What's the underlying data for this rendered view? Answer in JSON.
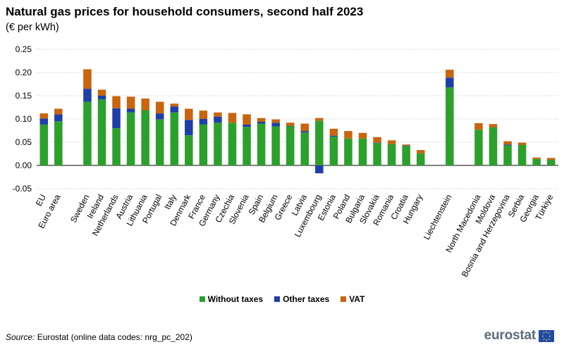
{
  "header": {
    "title": "Natural gas prices for household consumers, second half 2023",
    "subtitle": "(€ per kWh)"
  },
  "chart_data": {
    "type": "bar",
    "stacked": true,
    "title": "Natural gas prices for household consumers, second half 2023",
    "ylabel": "(€ per kWh)",
    "ylim": [
      -0.05,
      0.25
    ],
    "yticks": [
      "0.25",
      "0.20",
      "0.15",
      "0.10",
      "0.05",
      "0.00",
      "-0.05"
    ],
    "grid": true,
    "legend_position": "bottom",
    "categories": [
      "EU",
      "Euro area",
      "",
      "Sweden",
      "Ireland",
      "Netherlands",
      "Austria",
      "Lithuania",
      "Portugal",
      "Italy",
      "Denmark",
      "France",
      "Germany",
      "Czechia",
      "Slovenia",
      "Spain",
      "Belgium",
      "Greece",
      "Latvia",
      "Luxembourg",
      "Estonia",
      "Poland",
      "Bulgaria",
      "Slovakia",
      "Romania",
      "Croatia",
      "Hungary",
      "",
      "Liechtenstein",
      "",
      "North Macedonia",
      "Moldova",
      "Bosnia and Herzegovina",
      "Serbia",
      "Georgia",
      "Türkiye"
    ],
    "series": [
      {
        "name": "Without taxes",
        "color": "#2ca02c",
        "values": [
          0.088,
          0.095,
          null,
          0.137,
          0.142,
          0.08,
          0.114,
          0.119,
          0.099,
          0.114,
          0.065,
          0.088,
          0.092,
          0.092,
          0.083,
          0.09,
          0.084,
          0.084,
          0.071,
          0.096,
          0.062,
          0.058,
          0.058,
          0.048,
          0.046,
          0.042,
          0.026,
          null,
          0.168,
          null,
          0.077,
          0.082,
          0.043,
          0.044,
          0.014,
          0.012
        ]
      },
      {
        "name": "Other taxes",
        "color": "#1f3ea8",
        "values": [
          0.013,
          0.015,
          null,
          0.028,
          0.008,
          0.043,
          0.008,
          0.0,
          0.013,
          0.013,
          0.033,
          0.012,
          0.013,
          0.0,
          0.005,
          0.004,
          0.008,
          0.001,
          0.003,
          -0.017,
          0.002,
          0.0,
          0.0,
          0.001,
          0.0,
          0.001,
          0.0,
          null,
          0.021,
          null,
          0.0,
          0.0,
          0.002,
          0.0,
          0.0,
          0.0
        ]
      },
      {
        "name": "VAT",
        "color": "#c8650e",
        "values": [
          0.011,
          0.012,
          null,
          0.042,
          0.013,
          0.026,
          0.026,
          0.025,
          0.025,
          0.006,
          0.024,
          0.018,
          0.009,
          0.021,
          0.022,
          0.008,
          0.007,
          0.007,
          0.016,
          0.006,
          0.015,
          0.016,
          0.012,
          0.012,
          0.008,
          0.002,
          0.007,
          null,
          0.017,
          null,
          0.014,
          0.007,
          0.007,
          0.005,
          0.003,
          0.004
        ]
      }
    ]
  },
  "legend": {
    "items": [
      {
        "label": "Without taxes",
        "color": "#2ca02c"
      },
      {
        "label": "Other taxes",
        "color": "#1f3ea8"
      },
      {
        "label": "VAT",
        "color": "#c8650e"
      }
    ]
  },
  "footer": {
    "source_label": "Source:",
    "source_text": " Eurostat (online data codes: nrg_pc_202)",
    "logo_text": "eurostat"
  }
}
